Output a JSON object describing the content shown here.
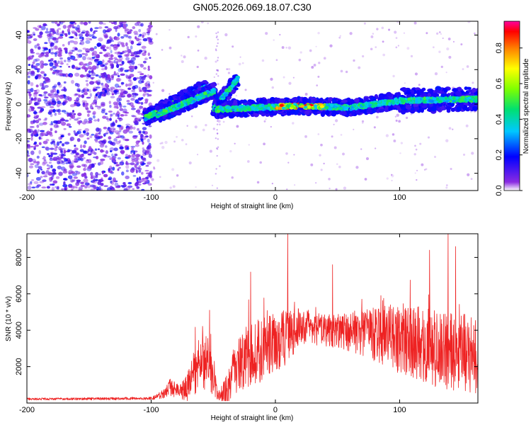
{
  "chart_data": [
    {
      "type": "heatmap",
      "title": "GN05.2026.069.18.07.C30",
      "xlabel": "Height of straight line (km)",
      "ylabel": "Frequency (Hz)",
      "xlim": [
        -200,
        163
      ],
      "ylim": [
        -50,
        48
      ],
      "xticks": [
        -200,
        -100,
        0,
        100
      ],
      "yticks": [
        40,
        20,
        0,
        -20,
        -40
      ],
      "x_tick_labels": [
        "-200",
        "-100",
        "0",
        "100"
      ],
      "y_tick_labels": [
        "40",
        "20",
        "0",
        "-20",
        "-40"
      ],
      "colorbar": {
        "label": "Normalized spectral amplitude",
        "range": [
          0,
          0.95
        ],
        "ticks": [
          0.0,
          0.2,
          0.4,
          0.6,
          0.8
        ],
        "tick_labels": [
          "0.0",
          "0.2",
          "0.4",
          "0.6",
          "0.8"
        ]
      },
      "noise_region_x": [
        -200,
        -100
      ],
      "trace_segments": [
        {
          "x": [
            -105,
            -55
          ],
          "y": [
            -8,
            10
          ]
        },
        {
          "x": [
            -95,
            -48
          ],
          "y": [
            -6,
            8
          ]
        },
        {
          "x": [
            -50,
            -30
          ],
          "y": [
            -3,
            15
          ]
        },
        {
          "x": [
            -48,
            20
          ],
          "y": [
            -3,
            -1
          ]
        },
        {
          "x": [
            20,
            60
          ],
          "y": [
            -1,
            -2
          ]
        },
        {
          "x": [
            60,
            100
          ],
          "y": [
            -2,
            2
          ]
        },
        {
          "x": [
            100,
            163
          ],
          "y": [
            2,
            3
          ]
        }
      ],
      "peak_x": [
        0,
        40
      ]
    },
    {
      "type": "line",
      "xlabel": "Height of straight line (km)",
      "ylabel": "SNR (10 * v/v)",
      "xlim": [
        -200,
        163
      ],
      "ylim": [
        0,
        9300
      ],
      "xticks": [
        -200,
        -100,
        0,
        100
      ],
      "yticks": [
        2000,
        4000,
        6000,
        8000
      ],
      "x_tick_labels": [
        "-200",
        "-100",
        "0",
        "100"
      ],
      "y_tick_labels": [
        "2000",
        "4000",
        "6000",
        "8000"
      ],
      "color": "#ee2222",
      "envelope": {
        "x": [
          -200,
          -100,
          -90,
          -85,
          -80,
          -75,
          -70,
          -65,
          -60,
          -55,
          -50,
          -45,
          -40,
          -35,
          -30,
          -20,
          -10,
          0,
          10,
          20,
          30,
          40,
          50,
          60,
          70,
          80,
          90,
          100,
          110,
          120,
          130,
          140,
          150,
          163
        ],
        "base": [
          220,
          250,
          500,
          900,
          700,
          700,
          900,
          1800,
          2600,
          2400,
          1200,
          400,
          600,
          1400,
          2000,
          2600,
          3000,
          3300,
          3700,
          4200,
          4100,
          4000,
          3900,
          3900,
          3900,
          3800,
          3700,
          3500,
          3300,
          3200,
          3000,
          2900,
          2800,
          2700
        ],
        "amp": [
          60,
          80,
          250,
          500,
          400,
          500,
          900,
          1500,
          1800,
          1700,
          800,
          300,
          900,
          1400,
          1500,
          1700,
          1800,
          1700,
          1500,
          1000,
          900,
          900,
          1000,
          1100,
          1300,
          1500,
          1700,
          1900,
          2000,
          2100,
          2200,
          2200,
          2200,
          2200
        ]
      },
      "notable_peaks": [
        {
          "x": 10,
          "y": 9300
        },
        {
          "x": 139,
          "y": 9300
        },
        {
          "x": 145,
          "y": 8600
        },
        {
          "x": 124,
          "y": 8400
        },
        {
          "x": -20,
          "y": 7200
        },
        {
          "x": 46,
          "y": 7600
        },
        {
          "x": -53,
          "y": 5100
        }
      ]
    }
  ]
}
